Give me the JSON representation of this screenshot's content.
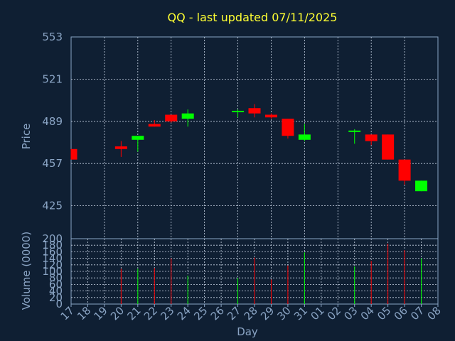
{
  "chart_data": {
    "type": "candlestick",
    "title": "QQ - last updated 07/11/2025",
    "xlabel": "Day",
    "ylabel_price": "Price",
    "ylabel_volume": "Volume (0000)",
    "x_ticks": [
      "17",
      "18",
      "19",
      "20",
      "21",
      "22",
      "23",
      "24",
      "25",
      "26",
      "27",
      "28",
      "29",
      "30",
      "31",
      "01",
      "02",
      "03",
      "04",
      "05",
      "06",
      "07",
      "08"
    ],
    "price_ylim": [
      400,
      553
    ],
    "price_ticks": [
      425,
      457,
      489,
      521,
      553
    ],
    "volume_ylim": [
      0,
      200
    ],
    "volume_ticks": [
      0,
      20,
      40,
      60,
      80,
      100,
      120,
      140,
      160,
      180,
      200
    ],
    "grid": true,
    "up_color": "#00ff00",
    "down_color": "#ff0000",
    "candles": [
      {
        "day": "17",
        "open": 468,
        "high": 468,
        "low": 460,
        "close": 460,
        "volume": 0
      },
      {
        "day": "20",
        "open": 470,
        "high": 474,
        "low": 462,
        "close": 468,
        "volume": 108
      },
      {
        "day": "21",
        "open": 475,
        "high": 478,
        "low": 466,
        "close": 478,
        "volume": 108
      },
      {
        "day": "22",
        "open": 487,
        "high": 490,
        "low": 485,
        "close": 485,
        "volume": 110
      },
      {
        "day": "23",
        "open": 494,
        "high": 494,
        "low": 488,
        "close": 489,
        "volume": 140
      },
      {
        "day": "24",
        "open": 491,
        "high": 498,
        "low": 485,
        "close": 495,
        "volume": 87
      },
      {
        "day": "27",
        "open": 496,
        "high": 498,
        "low": 492,
        "close": 497,
        "volume": 80
      },
      {
        "day": "28",
        "open": 499,
        "high": 502,
        "low": 492,
        "close": 495,
        "volume": 142
      },
      {
        "day": "29",
        "open": 494,
        "high": 495,
        "low": 491,
        "close": 492,
        "volume": 75
      },
      {
        "day": "30",
        "open": 491,
        "high": 491,
        "low": 476,
        "close": 478,
        "volume": 118
      },
      {
        "day": "31",
        "open": 475,
        "high": 487,
        "low": 474,
        "close": 479,
        "volume": 158
      },
      {
        "day": "03",
        "open": 481,
        "high": 483,
        "low": 472,
        "close": 482,
        "volume": 115
      },
      {
        "day": "04",
        "open": 479,
        "high": 479,
        "low": 471,
        "close": 474,
        "volume": 132
      },
      {
        "day": "05",
        "open": 479,
        "high": 479,
        "low": 460,
        "close": 460,
        "volume": 185
      },
      {
        "day": "06",
        "open": 460,
        "high": 460,
        "low": 441,
        "close": 444,
        "volume": 165
      },
      {
        "day": "07",
        "open": 436,
        "high": 444,
        "low": 436,
        "close": 444,
        "volume": 140
      }
    ]
  }
}
